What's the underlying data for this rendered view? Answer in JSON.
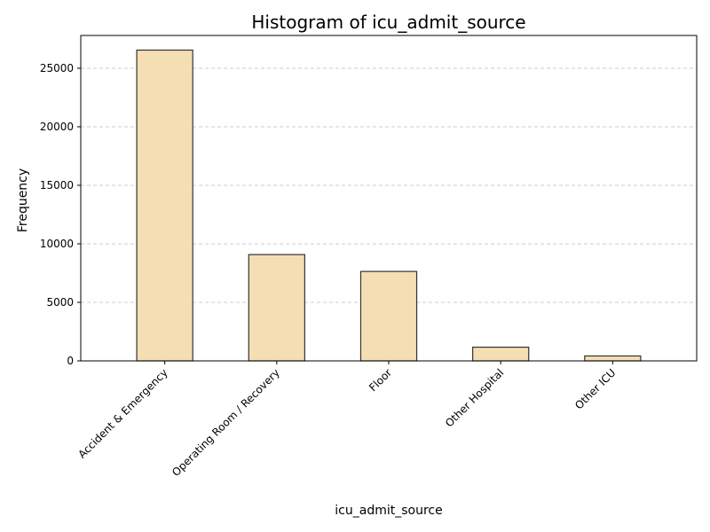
{
  "chart_data": {
    "type": "bar",
    "title": "Histogram of icu_admit_source",
    "xlabel": "icu_admit_source",
    "ylabel": "Frequency",
    "categories": [
      "Accident & Emergency",
      "Operating Room / Recovery",
      "Floor",
      "Other Hospital",
      "Other ICU"
    ],
    "values": [
      26550,
      9080,
      7640,
      1170,
      420
    ],
    "ylim": [
      0,
      27800
    ],
    "yticks": [
      0,
      5000,
      10000,
      15000,
      20000,
      25000
    ],
    "grid": "y-dashed",
    "bar_color": "#f5deb3",
    "bar_edge_color": "#333333",
    "grid_color": "#cccccc"
  }
}
